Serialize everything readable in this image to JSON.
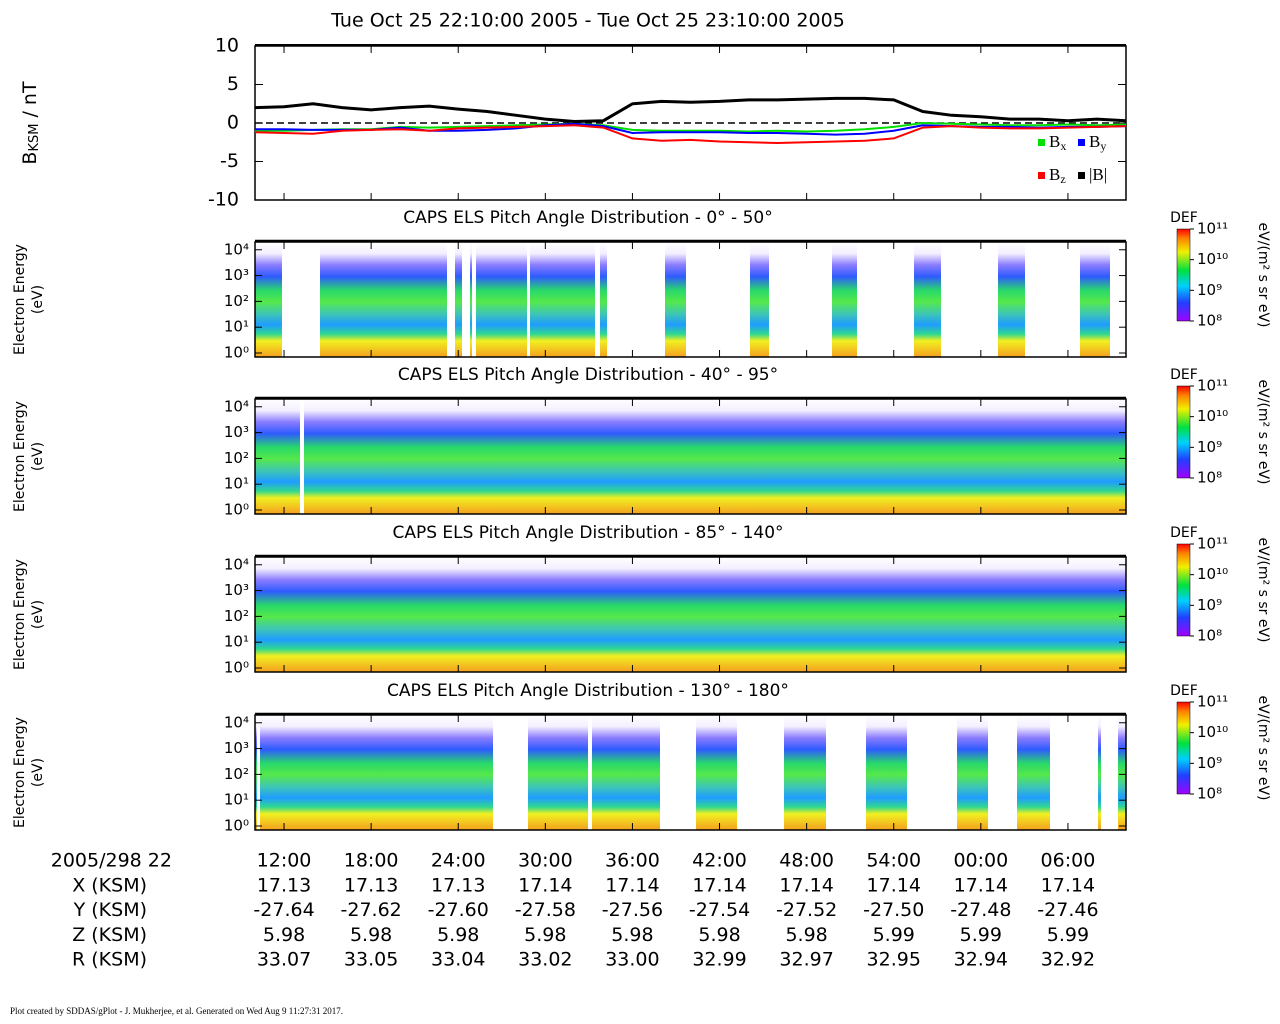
{
  "chart_data": [
    {
      "type": "line",
      "title": "Tue Oct 25 22:10:00 2005 - Tue Oct 25 23:10:00 2005",
      "ylabel": {
        "symbol": "B",
        "subscript": "KSM",
        "unit": " / nT"
      },
      "x": [
        0,
        2,
        4,
        6,
        8,
        10,
        12,
        14,
        16,
        18,
        20,
        22,
        24,
        26,
        28,
        30,
        32,
        34,
        36,
        38,
        40,
        42,
        44,
        46,
        48,
        50,
        52,
        54,
        56,
        58,
        60
      ],
      "xlim": [
        0,
        60
      ],
      "xticks": [
        {
          "value": 2,
          "label": "12:00"
        },
        {
          "value": 8,
          "label": "18:00"
        },
        {
          "value": 14,
          "label": "24:00"
        },
        {
          "value": 20,
          "label": "30:00"
        },
        {
          "value": 26,
          "label": "36:00"
        },
        {
          "value": 32,
          "label": "42:00"
        },
        {
          "value": 38,
          "label": "48:00"
        },
        {
          "value": 44,
          "label": "54:00"
        },
        {
          "value": 50,
          "label": "00:00"
        },
        {
          "value": 56,
          "label": "06:00"
        }
      ],
      "ylim": [
        -10,
        10
      ],
      "yticks": [
        -10,
        -5,
        0,
        5,
        10
      ],
      "legend": "lower right",
      "series": [
        {
          "name": "x",
          "prefix": "B",
          "color": "#00e000",
          "values": [
            -1.0,
            -1.0,
            -0.9,
            -0.8,
            -0.8,
            -0.5,
            -0.6,
            -0.5,
            -0.4,
            -0.3,
            -0.2,
            -0.1,
            -0.3,
            -0.9,
            -1.0,
            -1.0,
            -1.0,
            -1.1,
            -1.0,
            -1.1,
            -1.0,
            -0.8,
            -0.5,
            0,
            -0.1,
            -0.2,
            -0.3,
            -0.3,
            -0.2,
            -0.3,
            -0.2
          ]
        },
        {
          "name": "y",
          "prefix": "B",
          "color": "#0000ff",
          "values": [
            -0.8,
            -0.8,
            -0.9,
            -0.9,
            -0.9,
            -0.6,
            -1.0,
            -1.0,
            -0.9,
            -0.7,
            -0.3,
            -0.1,
            -0.4,
            -1.3,
            -1.2,
            -1.2,
            -1.2,
            -1.3,
            -1.3,
            -1.4,
            -1.5,
            -1.4,
            -1.0,
            -0.3,
            -0.4,
            -0.5,
            -0.5,
            -0.6,
            -0.5,
            -0.5,
            -0.4
          ]
        },
        {
          "name": "z",
          "prefix": "B",
          "color": "#ff0000",
          "values": [
            -1.2,
            -1.3,
            -1.4,
            -1.0,
            -0.9,
            -0.8,
            -1.0,
            -0.7,
            -0.6,
            -0.5,
            -0.4,
            -0.3,
            -0.6,
            -2.0,
            -2.3,
            -2.2,
            -2.4,
            -2.5,
            -2.6,
            -2.5,
            -2.4,
            -2.3,
            -2.0,
            -0.6,
            -0.4,
            -0.6,
            -0.7,
            -0.7,
            -0.6,
            -0.5,
            -0.4
          ]
        },
        {
          "name": "|B|",
          "prefix": "",
          "color": "#000000",
          "values": [
            2.0,
            2.1,
            2.5,
            2.0,
            1.7,
            2.0,
            2.2,
            1.8,
            1.5,
            1.0,
            0.5,
            0.2,
            0.3,
            2.5,
            2.8,
            2.7,
            2.8,
            3.0,
            3.0,
            3.1,
            3.2,
            3.2,
            3.0,
            1.5,
            1.0,
            0.8,
            0.5,
            0.5,
            0.3,
            0.5,
            0.3
          ]
        }
      ]
    },
    {
      "type": "spectrogram",
      "title": "CAPS ELS Pitch Angle Distribution - 0° - 50°",
      "ylabel": [
        "Electron Energy",
        "(eV)"
      ],
      "log": true,
      "ylim": [
        0.7,
        20000
      ],
      "yticks": [
        {
          "value": 1,
          "label": "10⁰"
        },
        {
          "value": 10,
          "label": "10¹"
        },
        {
          "value": 100,
          "label": "10²"
        },
        {
          "value": 1000,
          "label": "10³"
        },
        {
          "value": 10000,
          "label": "10⁴"
        }
      ],
      "colorbar": {
        "title": "DEF",
        "unit": "eV/(m² s sr eV)",
        "lim": [
          100000000,
          100000000000
        ],
        "ticks": [
          {
            "value": 100000000,
            "label": "10⁸"
          },
          {
            "value": 1000000000,
            "label": "10⁹"
          },
          {
            "value": 10000000000,
            "label": "10¹⁰"
          },
          {
            "value": 100000000000,
            "label": "10¹¹"
          }
        ]
      }
    },
    {
      "type": "spectrogram",
      "title": "CAPS ELS Pitch Angle Distribution - 40° - 95°",
      "ylabel": [
        "Electron Energy",
        "(eV)"
      ],
      "log": true,
      "ylim": [
        0.7,
        20000
      ],
      "yticks": [
        {
          "value": 1,
          "label": "10⁰"
        },
        {
          "value": 10,
          "label": "10¹"
        },
        {
          "value": 100,
          "label": "10²"
        },
        {
          "value": 1000,
          "label": "10³"
        },
        {
          "value": 10000,
          "label": "10⁴"
        }
      ],
      "colorbar": {
        "title": "DEF",
        "unit": "eV/(m² s sr eV)",
        "lim": [
          100000000,
          100000000000
        ],
        "ticks": [
          {
            "value": 100000000,
            "label": "10⁸"
          },
          {
            "value": 1000000000,
            "label": "10⁹"
          },
          {
            "value": 10000000000,
            "label": "10¹⁰"
          },
          {
            "value": 100000000000,
            "label": "10¹¹"
          }
        ]
      }
    },
    {
      "type": "spectrogram",
      "title": "CAPS ELS Pitch Angle Distribution - 85° - 140°",
      "ylabel": [
        "Electron Energy",
        "(eV)"
      ],
      "log": true,
      "ylim": [
        0.7,
        20000
      ],
      "yticks": [
        {
          "value": 1,
          "label": "10⁰"
        },
        {
          "value": 10,
          "label": "10¹"
        },
        {
          "value": 100,
          "label": "10²"
        },
        {
          "value": 1000,
          "label": "10³"
        },
        {
          "value": 10000,
          "label": "10⁴"
        }
      ],
      "colorbar": {
        "title": "DEF",
        "unit": "eV/(m² s sr eV)",
        "lim": [
          100000000,
          100000000000
        ],
        "ticks": [
          {
            "value": 100000000,
            "label": "10⁸"
          },
          {
            "value": 1000000000,
            "label": "10⁹"
          },
          {
            "value": 10000000000,
            "label": "10¹⁰"
          },
          {
            "value": 100000000000,
            "label": "10¹¹"
          }
        ]
      }
    },
    {
      "type": "spectrogram",
      "title": "CAPS ELS Pitch Angle Distribution - 130° - 180°",
      "ylabel": [
        "Electron Energy",
        "(eV)"
      ],
      "log": true,
      "ylim": [
        0.7,
        20000
      ],
      "yticks": [
        {
          "value": 1,
          "label": "10⁰"
        },
        {
          "value": 10,
          "label": "10¹"
        },
        {
          "value": 100,
          "label": "10²"
        },
        {
          "value": 1000,
          "label": "10³"
        },
        {
          "value": 10000,
          "label": "10⁴"
        }
      ],
      "colorbar": {
        "title": "DEF",
        "unit": "eV/(m² s sr eV)",
        "lim": [
          100000000,
          100000000000
        ],
        "ticks": [
          {
            "value": 100000000,
            "label": "10⁸"
          },
          {
            "value": 1000000000,
            "label": "10⁹"
          },
          {
            "value": 10000000000,
            "label": "10¹⁰"
          },
          {
            "value": 100000000000,
            "label": "10¹¹"
          }
        ]
      }
    }
  ],
  "ephemeris": {
    "time_label": "2005/298 22",
    "rows": [
      {
        "label": "X (KSM)",
        "values": [
          "17.13",
          "17.13",
          "17.13",
          "17.14",
          "17.14",
          "17.14",
          "17.14",
          "17.14",
          "17.14",
          "17.14"
        ]
      },
      {
        "label": "Y (KSM)",
        "values": [
          "-27.64",
          "-27.62",
          "-27.60",
          "-27.58",
          "-27.56",
          "-27.54",
          "-27.52",
          "-27.50",
          "-27.48",
          "-27.46"
        ]
      },
      {
        "label": "Z (KSM)",
        "values": [
          "5.98",
          "5.98",
          "5.98",
          "5.98",
          "5.98",
          "5.98",
          "5.98",
          "5.99",
          "5.99",
          "5.99"
        ]
      },
      {
        "label": "R (KSM)",
        "values": [
          "33.07",
          "33.05",
          "33.04",
          "33.02",
          "33.00",
          "32.99",
          "32.97",
          "32.95",
          "32.94",
          "32.92"
        ]
      }
    ]
  },
  "footer": "Plot created by SDDAS/gPlot - J. Mukherjee, et al.  Generated on Wed Aug 9 11:27:31 2017."
}
